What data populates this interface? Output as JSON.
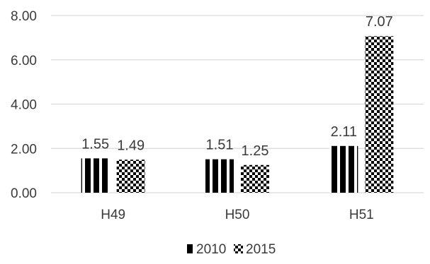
{
  "chart_data": {
    "type": "bar",
    "categories": [
      "H49",
      "H50",
      "H51"
    ],
    "series": [
      {
        "name": "2010",
        "values": [
          1.55,
          1.51,
          2.11
        ],
        "labels": [
          "1.55",
          "1.51",
          "2.11"
        ],
        "pattern": "vertical-stripes"
      },
      {
        "name": "2015",
        "values": [
          1.49,
          1.25,
          7.07
        ],
        "labels": [
          "1.49",
          "1.25",
          "7.07"
        ],
        "pattern": "checkerboard"
      }
    ],
    "y_ticks": [
      "0.00",
      "2.00",
      "4.00",
      "6.00",
      "8.00"
    ],
    "ylim": [
      0,
      8
    ],
    "grid": true,
    "legend_position": "bottom-center",
    "colors": {
      "ink": "#000000",
      "grid": "#d9d9d9",
      "text": "#3a3a3a",
      "background": "#ffffff"
    }
  }
}
